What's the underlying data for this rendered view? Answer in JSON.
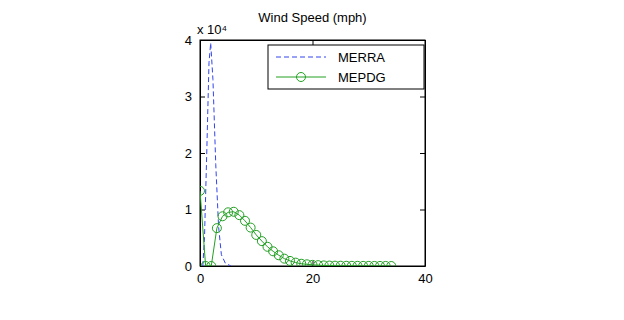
{
  "chart_data": {
    "type": "line",
    "title": "Wind Speed (mph)",
    "annotations": [
      "x 10⁴"
    ],
    "xlim": [
      0,
      40
    ],
    "xticks": [
      0,
      20,
      40
    ],
    "ylim": [
      0,
      4
    ],
    "yticks": [
      0,
      1,
      2,
      3,
      4
    ],
    "grid": false,
    "legend": "northeast",
    "series": [
      {
        "name": "MERRA",
        "color": "#3344ee",
        "line_style": "dashed",
        "marker": "none",
        "x": [
          0.5,
          0.8,
          1.2,
          1.6,
          1.9,
          2.3,
          2.8,
          3.3,
          3.8,
          4.5,
          5.5
        ],
        "values": [
          0,
          0.5,
          2.0,
          3.6,
          3.95,
          3.3,
          1.8,
          0.7,
          0.2,
          0.05,
          0
        ]
      },
      {
        "name": "MEPDG",
        "color": "#22a022",
        "line_style": "solid",
        "marker": "circle",
        "x": [
          0,
          1,
          2,
          3,
          4,
          5,
          6,
          7,
          8,
          9,
          10,
          11,
          12,
          13,
          14,
          15,
          16,
          17,
          18,
          19,
          20,
          21,
          22,
          23,
          24,
          25,
          26,
          27,
          28,
          29,
          30,
          31,
          32,
          33,
          34
        ],
        "values": [
          1.33,
          0,
          0,
          0.67,
          0.88,
          0.95,
          0.96,
          0.9,
          0.8,
          0.68,
          0.55,
          0.44,
          0.34,
          0.26,
          0.19,
          0.13,
          0.09,
          0.06,
          0.04,
          0.03,
          0.02,
          0.015,
          0.01,
          0.008,
          0.006,
          0.005,
          0.004,
          0.003,
          0.003,
          0.002,
          0.002,
          0.001,
          0.001,
          0.001,
          0
        ]
      }
    ]
  }
}
